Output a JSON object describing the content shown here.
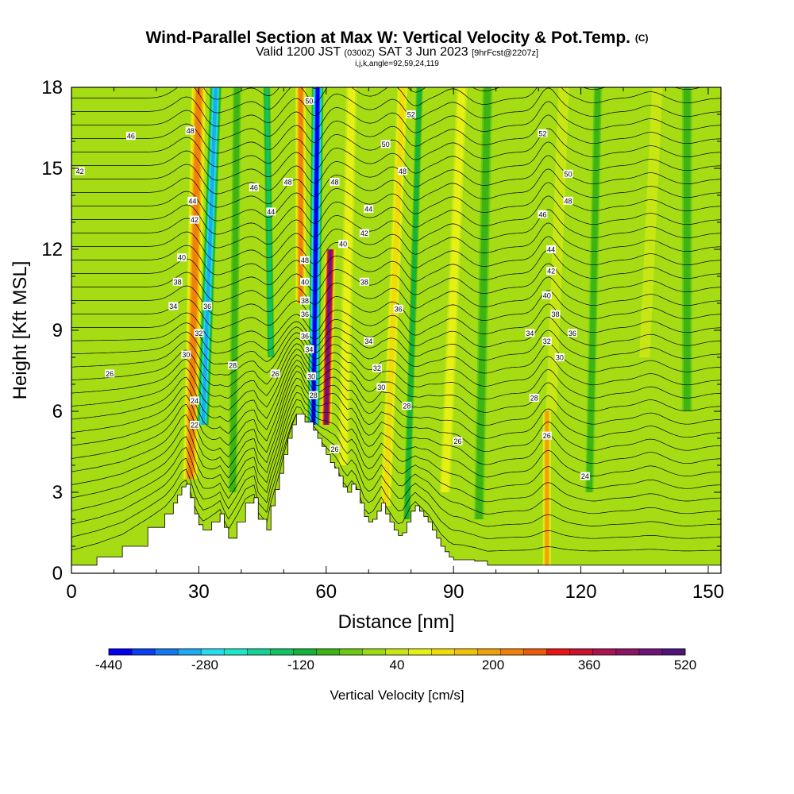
{
  "header": {
    "title": "Wind-Parallel Section at Max W: Vertical Velocity & Pot.Temp.",
    "copyright": "(C)",
    "valid_prefix": "Valid 1200 JST",
    "valid_utc": "(0300Z)",
    "valid_date": "SAT 3 Jun 2023",
    "forecast": "[9hrFcst@2207z]",
    "indices": "i,j,k,angle=92,59,24,119"
  },
  "colors": {
    "palette": [
      "#0000f0",
      "#0a40f0",
      "#1478f0",
      "#1eaaf0",
      "#28dcf0",
      "#1ee6c8",
      "#14d296",
      "#10c464",
      "#14b43c",
      "#3cb414",
      "#6cc814",
      "#9cdc14",
      "#c8e614",
      "#e6f014",
      "#f0dc0a",
      "#f0c30a",
      "#f0a00a",
      "#f0820a",
      "#eb5a0a",
      "#e61414",
      "#c8142d",
      "#aa1450",
      "#8c1464",
      "#6e1478",
      "#501478"
    ],
    "terrain": "#ffffff",
    "contour": "#000000"
  },
  "chart_data": {
    "type": "heatmap",
    "xlabel": "Distance [nm]",
    "ylabel": "Height [Kft MSL]",
    "xlim": [
      0,
      153
    ],
    "ylim": [
      0,
      18
    ],
    "x_ticks": [
      0,
      30,
      60,
      90,
      120,
      150
    ],
    "y_ticks": [
      0,
      3,
      6,
      9,
      12,
      15,
      18
    ],
    "colorbar": {
      "label": "Vertical Velocity [cm/s]",
      "min": -440,
      "max": 520,
      "step": 40,
      "tick_labels": [
        -440,
        -280,
        -120,
        40,
        200,
        360,
        520
      ]
    },
    "terrain_profile": {
      "x": [
        0,
        6,
        12,
        18,
        22,
        24,
        25,
        26,
        27,
        28,
        29,
        30,
        31,
        33,
        35,
        36,
        37,
        39,
        41,
        43,
        44,
        46,
        47,
        48,
        49,
        50,
        51,
        52,
        53,
        54,
        55,
        56,
        57,
        58,
        59,
        60,
        61,
        62,
        63,
        64,
        65,
        66,
        67,
        68,
        69,
        70,
        71,
        72,
        73,
        74,
        75,
        76,
        77,
        78,
        79,
        80,
        81,
        82,
        83,
        84,
        85,
        86,
        87,
        88,
        89,
        90,
        92,
        95,
        98,
        100,
        153
      ],
      "y": [
        0.3,
        0.6,
        1.0,
        1.7,
        2.2,
        2.6,
        2.9,
        3.2,
        3.3,
        2.8,
        2.2,
        1.8,
        1.6,
        1.9,
        2.2,
        1.7,
        1.3,
        1.9,
        2.6,
        2.8,
        2.0,
        1.6,
        2.5,
        3.1,
        3.7,
        4.4,
        5.0,
        5.5,
        5.9,
        5.9,
        5.6,
        5.6,
        5.3,
        5.0,
        4.7,
        4.4,
        4.1,
        3.9,
        3.6,
        3.2,
        3.0,
        3.3,
        3.1,
        2.6,
        2.1,
        1.9,
        2.0,
        2.3,
        2.6,
        2.2,
        1.9,
        1.6,
        1.4,
        1.5,
        1.9,
        2.3,
        2.5,
        2.3,
        2.1,
        1.9,
        1.6,
        1.3,
        1.0,
        0.8,
        0.6,
        0.5,
        0.5,
        0.45,
        0.3,
        0.3,
        0.3
      ]
    },
    "vertical_velocity_features": [
      {
        "x": 29,
        "value": 280,
        "x_top": 30,
        "x_bottom": 28,
        "y_top": 18,
        "y_bottom": 3.5,
        "width": 3.5
      },
      {
        "x": 34,
        "value": -320,
        "x_top": 34,
        "x_bottom": 31,
        "y_top": 18,
        "y_bottom": 5.5,
        "width": 3.0
      },
      {
        "x": 39,
        "value": -80,
        "x_top": 39,
        "x_bottom": 38,
        "y_top": 18,
        "y_bottom": 3.0,
        "width": 2.5
      },
      {
        "x": 47,
        "value": -140,
        "x_top": 46,
        "x_bottom": 47,
        "y_top": 18,
        "y_bottom": 8.0,
        "width": 2.0
      },
      {
        "x": 54,
        "value": 280,
        "x_top": 54,
        "x_bottom": 54,
        "y_top": 18,
        "y_bottom": 10.0,
        "width": 2.5
      },
      {
        "x": 57,
        "value": -440,
        "x_top": 58,
        "x_bottom": 57,
        "y_top": 18,
        "y_bottom": 5.5,
        "width": 3.0
      },
      {
        "x": 60,
        "value": 520,
        "x_top": 61,
        "x_bottom": 60,
        "y_top": 12,
        "y_bottom": 5.5,
        "width": 2.5
      },
      {
        "x": 65,
        "value": 120,
        "x_top": 66,
        "x_bottom": 64,
        "y_top": 18,
        "y_bottom": 4.0,
        "width": 2.5
      },
      {
        "x": 75,
        "value": 160,
        "x_top": 78,
        "x_bottom": 74,
        "y_top": 18,
        "y_bottom": 2.5,
        "width": 2.5
      },
      {
        "x": 80,
        "value": -120,
        "x_top": 82,
        "x_bottom": 79,
        "y_top": 18,
        "y_bottom": 2.0,
        "width": 2.0
      },
      {
        "x": 88,
        "value": 120,
        "x_top": 92,
        "x_bottom": 88,
        "y_top": 18,
        "y_bottom": 3.0,
        "width": 2.5
      },
      {
        "x": 96,
        "value": -80,
        "x_top": 98,
        "x_bottom": 96,
        "y_top": 18,
        "y_bottom": 2.0,
        "width": 3.0
      },
      {
        "x": 112,
        "value": 240,
        "x_top": 112,
        "x_bottom": 112,
        "y_top": 6.0,
        "y_bottom": 0.3,
        "width": 2.0
      },
      {
        "x": 114,
        "value": 80,
        "x_top": 116,
        "x_bottom": 113,
        "y_top": 18,
        "y_bottom": 6.0,
        "width": 2.5
      },
      {
        "x": 123,
        "value": -60,
        "x_top": 124,
        "x_bottom": 122,
        "y_top": 18,
        "y_bottom": 3.0,
        "width": 2.5
      },
      {
        "x": 136,
        "value": 80,
        "x_top": 138,
        "x_bottom": 135,
        "y_top": 18,
        "y_bottom": 8.0,
        "width": 2.5
      },
      {
        "x": 145,
        "value": -60,
        "x_top": 145,
        "x_bottom": 145,
        "y_top": 18,
        "y_bottom": 6.0,
        "width": 3.0
      }
    ],
    "potential_temperature_labels": [
      {
        "text": "46",
        "x": 14,
        "y": 16.2
      },
      {
        "text": "48",
        "x": 28,
        "y": 16.4
      },
      {
        "text": "42",
        "x": 2,
        "y": 14.9
      },
      {
        "text": "44",
        "x": 28.5,
        "y": 13.8
      },
      {
        "text": "42",
        "x": 29,
        "y": 13.1
      },
      {
        "text": "40",
        "x": 26,
        "y": 11.7
      },
      {
        "text": "38",
        "x": 25,
        "y": 10.8
      },
      {
        "text": "34",
        "x": 24,
        "y": 9.9
      },
      {
        "text": "36",
        "x": 32,
        "y": 9.9
      },
      {
        "text": "32",
        "x": 30,
        "y": 8.9
      },
      {
        "text": "30",
        "x": 27,
        "y": 8.1
      },
      {
        "text": "26",
        "x": 9,
        "y": 7.4
      },
      {
        "text": "28",
        "x": 38,
        "y": 7.7
      },
      {
        "text": "26",
        "x": 48,
        "y": 7.4
      },
      {
        "text": "24",
        "x": 29,
        "y": 6.4
      },
      {
        "text": "22",
        "x": 29,
        "y": 5.5
      },
      {
        "text": "46",
        "x": 43,
        "y": 14.3
      },
      {
        "text": "44",
        "x": 47,
        "y": 13.4
      },
      {
        "text": "48",
        "x": 51,
        "y": 14.5
      },
      {
        "text": "50",
        "x": 56,
        "y": 17.5
      },
      {
        "text": "48",
        "x": 55,
        "y": 11.6
      },
      {
        "text": "40",
        "x": 55,
        "y": 10.8
      },
      {
        "text": "38",
        "x": 55,
        "y": 10.1
      },
      {
        "text": "36",
        "x": 55,
        "y": 9.6
      },
      {
        "text": "36",
        "x": 55,
        "y": 8.8
      },
      {
        "text": "34",
        "x": 56,
        "y": 8.3
      },
      {
        "text": "30",
        "x": 56.5,
        "y": 7.3
      },
      {
        "text": "28",
        "x": 57,
        "y": 6.6
      },
      {
        "text": "26",
        "x": 62,
        "y": 4.6
      },
      {
        "text": "52",
        "x": 80,
        "y": 17.0
      },
      {
        "text": "50",
        "x": 74,
        "y": 15.9
      },
      {
        "text": "48",
        "x": 62,
        "y": 14.5
      },
      {
        "text": "48",
        "x": 78,
        "y": 14.9
      },
      {
        "text": "44",
        "x": 70,
        "y": 13.5
      },
      {
        "text": "42",
        "x": 69,
        "y": 12.6
      },
      {
        "text": "40",
        "x": 64,
        "y": 12.2
      },
      {
        "text": "38",
        "x": 69,
        "y": 10.8
      },
      {
        "text": "36",
        "x": 77,
        "y": 9.8
      },
      {
        "text": "34",
        "x": 70,
        "y": 8.6
      },
      {
        "text": "32",
        "x": 72,
        "y": 7.6
      },
      {
        "text": "30",
        "x": 73,
        "y": 6.9
      },
      {
        "text": "28",
        "x": 79,
        "y": 6.2
      },
      {
        "text": "26",
        "x": 91,
        "y": 4.9
      },
      {
        "text": "52",
        "x": 111,
        "y": 16.3
      },
      {
        "text": "50",
        "x": 117,
        "y": 14.8
      },
      {
        "text": "48",
        "x": 117,
        "y": 13.8
      },
      {
        "text": "46",
        "x": 111,
        "y": 13.3
      },
      {
        "text": "44",
        "x": 113,
        "y": 12.0
      },
      {
        "text": "42",
        "x": 113,
        "y": 11.2
      },
      {
        "text": "40",
        "x": 112,
        "y": 10.3
      },
      {
        "text": "38",
        "x": 114,
        "y": 9.6
      },
      {
        "text": "36",
        "x": 118,
        "y": 8.9
      },
      {
        "text": "34",
        "x": 108,
        "y": 8.9
      },
      {
        "text": "32",
        "x": 112,
        "y": 8.6
      },
      {
        "text": "30",
        "x": 115,
        "y": 8.0
      },
      {
        "text": "28",
        "x": 109,
        "y": 6.5
      },
      {
        "text": "26",
        "x": 112,
        "y": 5.1
      },
      {
        "text": "24",
        "x": 121,
        "y": 3.6
      }
    ]
  }
}
